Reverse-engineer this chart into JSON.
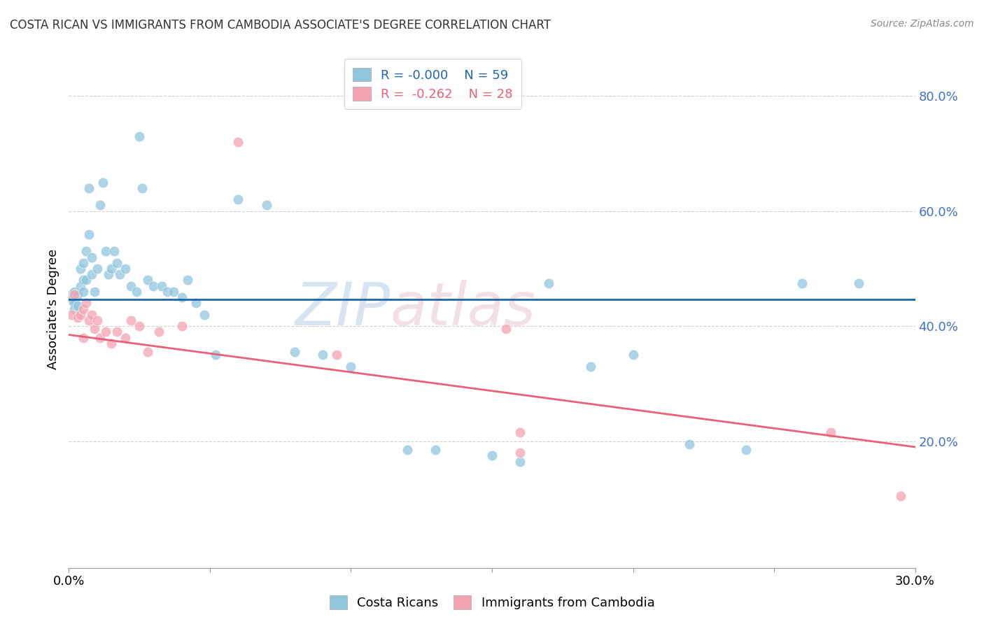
{
  "title": "COSTA RICAN VS IMMIGRANTS FROM CAMBODIA ASSOCIATE'S DEGREE CORRELATION CHART",
  "source": "Source: ZipAtlas.com",
  "ylabel": "Associate's Degree",
  "xlim": [
    0.0,
    0.3
  ],
  "ylim": [
    -0.02,
    0.88
  ],
  "yticks": [
    0.2,
    0.4,
    0.6,
    0.8
  ],
  "ytick_labels": [
    "20.0%",
    "40.0%",
    "60.0%",
    "80.0%"
  ],
  "xticks": [
    0.0,
    0.05,
    0.1,
    0.15,
    0.2,
    0.25,
    0.3
  ],
  "blue_color": "#92c5de",
  "pink_color": "#f4a3b0",
  "trend_blue": "#2166ac",
  "trend_pink": "#e8607a",
  "tick_color": "#4472c4",
  "background": "#ffffff",
  "grid_color": "#cccccc",
  "blue_x": [
    0.001,
    0.001,
    0.002,
    0.002,
    0.002,
    0.003,
    0.003,
    0.004,
    0.004,
    0.005,
    0.005,
    0.005,
    0.006,
    0.006,
    0.007,
    0.007,
    0.008,
    0.008,
    0.009,
    0.01,
    0.011,
    0.012,
    0.013,
    0.014,
    0.015,
    0.016,
    0.017,
    0.018,
    0.02,
    0.022,
    0.024,
    0.025,
    0.026,
    0.028,
    0.03,
    0.033,
    0.035,
    0.037,
    0.04,
    0.042,
    0.045,
    0.048,
    0.052,
    0.06,
    0.07,
    0.08,
    0.09,
    0.1,
    0.12,
    0.13,
    0.15,
    0.16,
    0.17,
    0.185,
    0.2,
    0.22,
    0.24,
    0.26,
    0.28
  ],
  "blue_y": [
    0.455,
    0.445,
    0.46,
    0.44,
    0.43,
    0.455,
    0.435,
    0.5,
    0.47,
    0.46,
    0.51,
    0.48,
    0.53,
    0.48,
    0.56,
    0.64,
    0.52,
    0.49,
    0.46,
    0.5,
    0.61,
    0.65,
    0.53,
    0.49,
    0.5,
    0.53,
    0.51,
    0.49,
    0.5,
    0.47,
    0.46,
    0.73,
    0.64,
    0.48,
    0.47,
    0.47,
    0.46,
    0.46,
    0.45,
    0.48,
    0.44,
    0.42,
    0.35,
    0.62,
    0.61,
    0.355,
    0.35,
    0.33,
    0.185,
    0.185,
    0.175,
    0.165,
    0.475,
    0.33,
    0.35,
    0.195,
    0.185,
    0.475,
    0.475
  ],
  "pink_x": [
    0.001,
    0.002,
    0.003,
    0.004,
    0.005,
    0.005,
    0.006,
    0.007,
    0.008,
    0.009,
    0.01,
    0.011,
    0.013,
    0.015,
    0.017,
    0.02,
    0.022,
    0.025,
    0.028,
    0.032,
    0.04,
    0.06,
    0.095,
    0.155,
    0.16,
    0.16,
    0.27,
    0.295
  ],
  "pink_y": [
    0.42,
    0.455,
    0.415,
    0.42,
    0.43,
    0.38,
    0.44,
    0.41,
    0.42,
    0.395,
    0.41,
    0.38,
    0.39,
    0.37,
    0.39,
    0.38,
    0.41,
    0.4,
    0.355,
    0.39,
    0.4,
    0.72,
    0.35,
    0.395,
    0.18,
    0.215,
    0.215,
    0.105
  ],
  "blue_trend_y": 0.447,
  "pink_trend_x0": 0.0,
  "pink_trend_y0": 0.385,
  "pink_trend_x1": 0.3,
  "pink_trend_y1": 0.19
}
